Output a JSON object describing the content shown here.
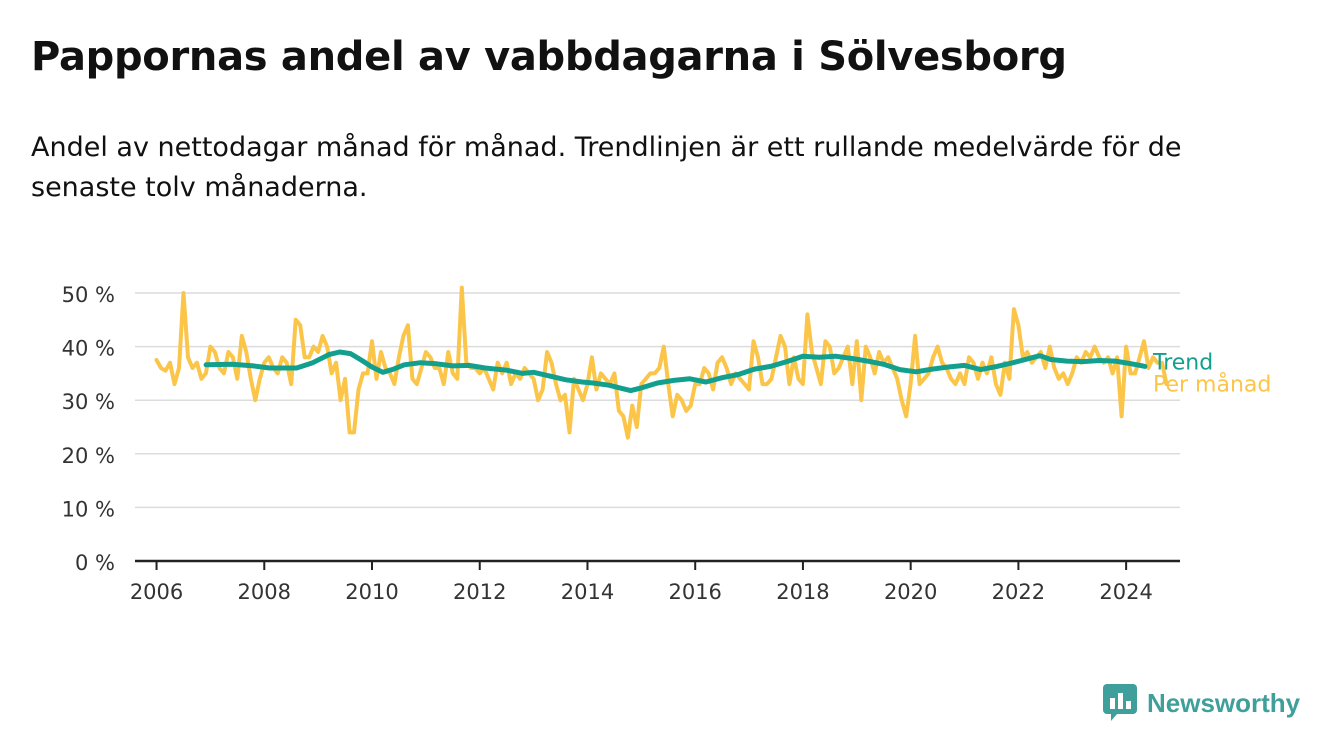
{
  "header": {
    "title": "Pappornas andel av vabbdagarna i Sölvesborg",
    "subtitle": "Andel av nettodagar månad för månad. Trendlinjen är ett rullande medelvärde för de senaste tolv månaderna."
  },
  "brand": {
    "name": "Newsworthy",
    "icon": "bar-chart-logo-icon",
    "color": "#3f9f9a"
  },
  "colors": {
    "monthly": "#fbc54a",
    "trend": "#139f8e",
    "grid": "#dcdcdc",
    "axis": "#222222",
    "text": "#333333"
  },
  "chart_data": {
    "type": "line",
    "title": "Pappornas andel av vabbdagarna i Sölvesborg",
    "xlabel": "",
    "ylabel": "",
    "xlim": [
      2005.6,
      2025.0
    ],
    "ylim": [
      0,
      50
    ],
    "y_ticks": [
      0,
      10,
      20,
      30,
      40,
      50
    ],
    "y_tick_labels": [
      "0 %",
      "10 %",
      "20 %",
      "30 %",
      "40 %",
      "50 %"
    ],
    "x_ticks": [
      2006,
      2008,
      2010,
      2012,
      2014,
      2016,
      2018,
      2020,
      2022,
      2024
    ],
    "x_tick_labels": [
      "2006",
      "2008",
      "2010",
      "2012",
      "2014",
      "2016",
      "2018",
      "2020",
      "2022",
      "2024"
    ],
    "grid": true,
    "legend": "right-end labels",
    "series": [
      {
        "name": "Per månad",
        "x_start": 2006.0,
        "x_step": 0.08333,
        "values": [
          37.5,
          36,
          35.5,
          37,
          33,
          36,
          50,
          38,
          36,
          37,
          34,
          35,
          40,
          39,
          36,
          35,
          39,
          38,
          34,
          42,
          39,
          34,
          30,
          34,
          37,
          38,
          36,
          35,
          38,
          37,
          33,
          45,
          44,
          38,
          38,
          40,
          39,
          42,
          40,
          35,
          37,
          30,
          34,
          24,
          24,
          32,
          35,
          35,
          41,
          34,
          39,
          36,
          35,
          33,
          38,
          42,
          44,
          34,
          33,
          36,
          39,
          38,
          36,
          36,
          33,
          39,
          35,
          34,
          51,
          37,
          36,
          36,
          35,
          36,
          34,
          32,
          37,
          35,
          37,
          33,
          35,
          34,
          36,
          35,
          34,
          30,
          32,
          39,
          37,
          33,
          30,
          31,
          24,
          34,
          32,
          30,
          33,
          38,
          32,
          35,
          34,
          33,
          35,
          28,
          27,
          23,
          29,
          25,
          33,
          34,
          35,
          35,
          36,
          40,
          33,
          27,
          31,
          30,
          28,
          29,
          33,
          33,
          36,
          35,
          32,
          37,
          38,
          36,
          33,
          35,
          34,
          33,
          32,
          41,
          38,
          33,
          33,
          34,
          38,
          42,
          40,
          33,
          38,
          34,
          33,
          46,
          39,
          36,
          33,
          41,
          40,
          35,
          36,
          38,
          40,
          33,
          41,
          30,
          40,
          38,
          35,
          39,
          37,
          38,
          36,
          34,
          30,
          27,
          33,
          42,
          33,
          34,
          35,
          38,
          40,
          37,
          36,
          34,
          33,
          35,
          33,
          38,
          37,
          34,
          37,
          35,
          38,
          33,
          31,
          37,
          34,
          47,
          44,
          38,
          39,
          37,
          38,
          39,
          36,
          40,
          36,
          34,
          35,
          33,
          35,
          38,
          37,
          39,
          38,
          40,
          38,
          37,
          38,
          35,
          38,
          27,
          40,
          35,
          35,
          38,
          41,
          36,
          38,
          37,
          37,
          33
        ],
        "color": "#fbc54a"
      },
      {
        "name": "Trend",
        "points": [
          [
            2006.92,
            36.6
          ],
          [
            2007.4,
            36.7
          ],
          [
            2007.8,
            36.4
          ],
          [
            2008.1,
            36
          ],
          [
            2008.6,
            36
          ],
          [
            2008.9,
            37
          ],
          [
            2009.2,
            38.5
          ],
          [
            2009.4,
            39
          ],
          [
            2009.6,
            38.7
          ],
          [
            2009.8,
            37.5
          ],
          [
            2010.0,
            36.2
          ],
          [
            2010.2,
            35.2
          ],
          [
            2010.4,
            35.8
          ],
          [
            2010.6,
            36.6
          ],
          [
            2010.9,
            37
          ],
          [
            2011.2,
            36.8
          ],
          [
            2011.5,
            36.4
          ],
          [
            2011.8,
            36.5
          ],
          [
            2012.1,
            36
          ],
          [
            2012.5,
            35.6
          ],
          [
            2012.8,
            35
          ],
          [
            2013.0,
            35.2
          ],
          [
            2013.3,
            34.5
          ],
          [
            2013.6,
            33.8
          ],
          [
            2013.9,
            33.4
          ],
          [
            2014.1,
            33.2
          ],
          [
            2014.4,
            32.8
          ],
          [
            2014.6,
            32.3
          ],
          [
            2014.8,
            31.8
          ],
          [
            2015.0,
            32.3
          ],
          [
            2015.3,
            33.2
          ],
          [
            2015.6,
            33.7
          ],
          [
            2015.9,
            34
          ],
          [
            2016.2,
            33.4
          ],
          [
            2016.5,
            34.2
          ],
          [
            2016.8,
            34.8
          ],
          [
            2017.1,
            35.8
          ],
          [
            2017.4,
            36.3
          ],
          [
            2017.7,
            37.2
          ],
          [
            2018.0,
            38.2
          ],
          [
            2018.3,
            38
          ],
          [
            2018.6,
            38.2
          ],
          [
            2018.9,
            37.8
          ],
          [
            2019.2,
            37.3
          ],
          [
            2019.5,
            36.7
          ],
          [
            2019.8,
            35.7
          ],
          [
            2020.1,
            35.3
          ],
          [
            2020.4,
            35.8
          ],
          [
            2020.7,
            36.2
          ],
          [
            2021.0,
            36.5
          ],
          [
            2021.3,
            35.7
          ],
          [
            2021.6,
            36.3
          ],
          [
            2021.9,
            37
          ],
          [
            2022.2,
            37.8
          ],
          [
            2022.4,
            38.3
          ],
          [
            2022.6,
            37.6
          ],
          [
            2022.9,
            37.3
          ],
          [
            2023.2,
            37.2
          ],
          [
            2023.5,
            37.4
          ],
          [
            2023.8,
            37.3
          ],
          [
            2024.1,
            36.8
          ],
          [
            2024.35,
            36.3
          ]
        ],
        "color": "#139f8e"
      }
    ],
    "end_labels": [
      {
        "series": "Trend",
        "text": "Trend"
      },
      {
        "series": "Per månad",
        "text": "Per månad"
      }
    ]
  }
}
